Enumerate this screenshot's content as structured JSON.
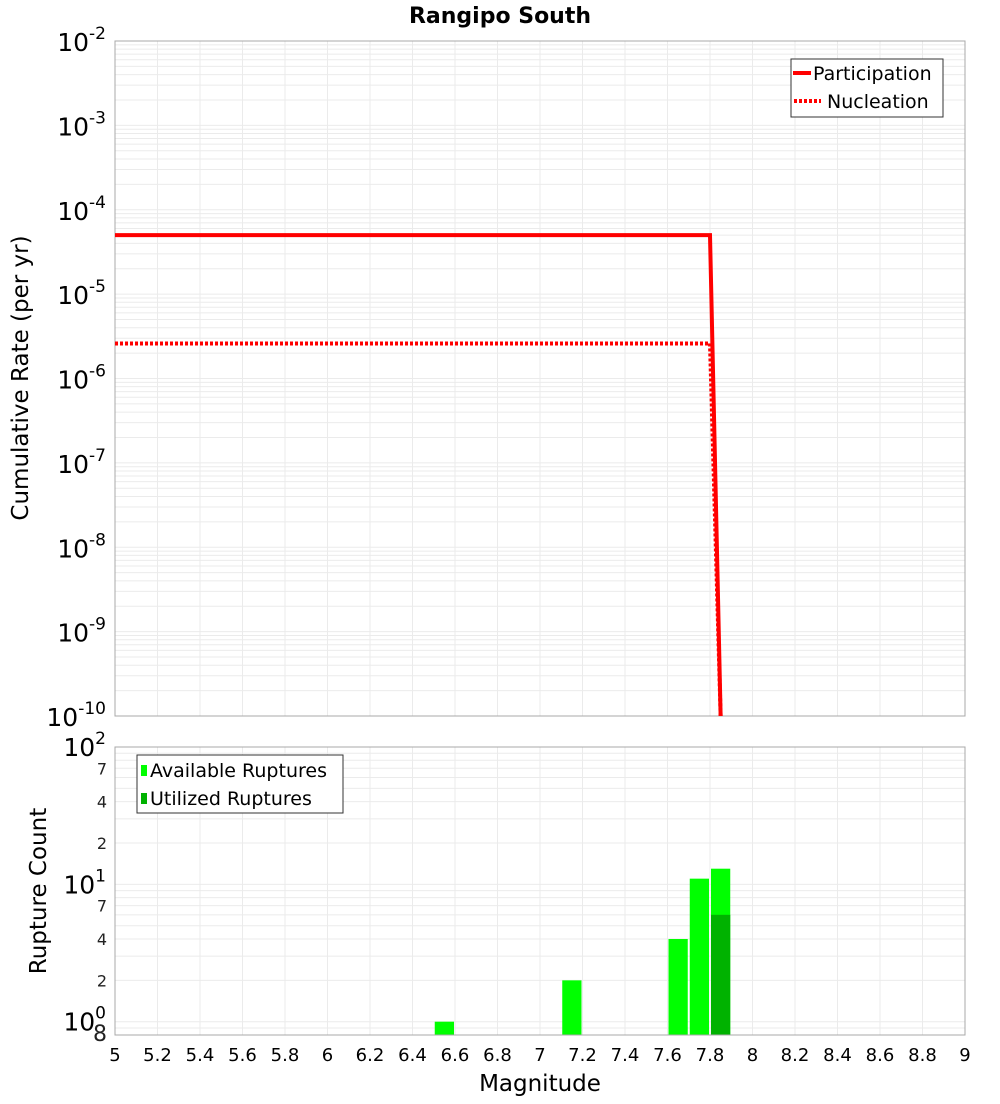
{
  "title": "Rangipo South",
  "colors": {
    "participation": "#ff0000",
    "nucleation": "#ff0000",
    "available": "#00ff00",
    "utilized": "#00b200",
    "grid": "#ebebeb",
    "axis": "#a8a8a8"
  },
  "chart_data": [
    {
      "type": "line",
      "title": "Rangipo South",
      "xlabel": "Magnitude",
      "ylabel": "Cumulative Rate (per yr)",
      "xlim": [
        5,
        9
      ],
      "ylim": [
        1e-10,
        0.01
      ],
      "yscale": "log",
      "grid": true,
      "legend_position": "top-right",
      "y_tick_labels": [
        "10^-2",
        "10^-3",
        "10^-4",
        "10^-5",
        "10^-6",
        "10^-7",
        "10^-8",
        "10^-9",
        "10^-10"
      ],
      "series": [
        {
          "name": "Participation",
          "style": "solid",
          "x": [
            5.0,
            7.8,
            7.85
          ],
          "y": [
            5e-05,
            5e-05,
            1e-10
          ]
        },
        {
          "name": "Nucleation",
          "style": "dotted",
          "x": [
            5.0,
            7.8,
            7.85
          ],
          "y": [
            2.6e-06,
            2.6e-06,
            1e-10
          ]
        }
      ]
    },
    {
      "type": "bar",
      "xlabel": "Magnitude",
      "ylabel": "Rupture Count",
      "xlim": [
        5,
        9
      ],
      "ylim": [
        0.8,
        100
      ],
      "yscale": "log",
      "grid": true,
      "legend_position": "top-left",
      "x_tick_labels": [
        "5",
        "5.2",
        "5.4",
        "5.6",
        "5.8",
        "6",
        "6.2",
        "6.4",
        "6.6",
        "6.8",
        "7",
        "7.2",
        "7.4",
        "7.6",
        "7.8",
        "8",
        "8.2",
        "8.4",
        "8.6",
        "8.8",
        "9"
      ],
      "y_major_labels": [
        {
          "base": "10",
          "exp": "2",
          "value": 100
        },
        {
          "base": "10",
          "exp": "1",
          "value": 10
        },
        {
          "base": "10",
          "exp": "0",
          "value": 1
        }
      ],
      "y_minor_labels": [
        {
          "label": "7",
          "value": 70
        },
        {
          "label": "4",
          "value": 40
        },
        {
          "label": "2",
          "value": 20
        },
        {
          "label": "7",
          "value": 7
        },
        {
          "label": "4",
          "value": 4
        },
        {
          "label": "2",
          "value": 2
        },
        {
          "label": "8",
          "value": 0.8
        }
      ],
      "bin_width": 0.1,
      "series": [
        {
          "name": "Available Ruptures",
          "x": [
            6.55,
            7.15,
            7.65,
            7.75,
            7.85
          ],
          "values": [
            1,
            2,
            4,
            11,
            13
          ]
        },
        {
          "name": "Utilized Ruptures",
          "x": [
            7.85
          ],
          "values": [
            6
          ]
        }
      ]
    }
  ],
  "legend_top": [
    {
      "label": "Participation",
      "style": "solid"
    },
    {
      "label": "Nucleation",
      "style": "dotted"
    }
  ],
  "legend_bottom": [
    {
      "label": "Available Ruptures"
    },
    {
      "label": "Utilized Ruptures"
    }
  ]
}
